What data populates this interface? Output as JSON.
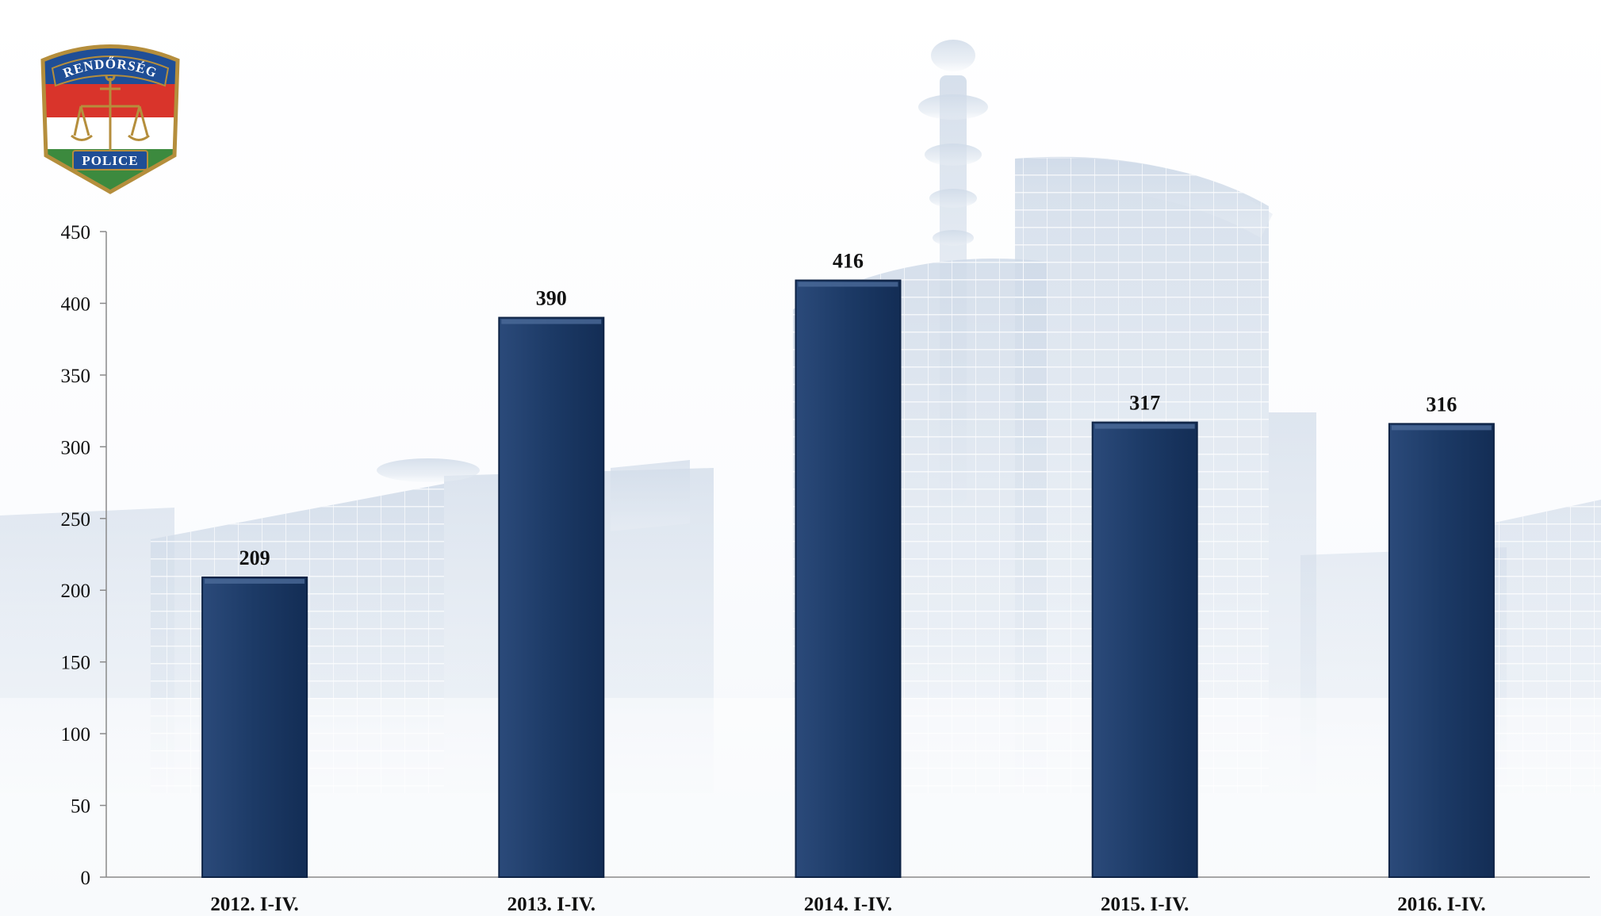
{
  "logo": {
    "top_text": "RENDŐRSÉG",
    "bottom_text": "POLICE",
    "colors": {
      "red": "#d9342b",
      "white": "#ffffff",
      "green": "#3c8a3e",
      "blue": "#1f4e96",
      "gold": "#b58e3c"
    }
  },
  "background": {
    "subject": "building-watermark",
    "tint": "#d6e0ec"
  },
  "chart_data": {
    "type": "bar",
    "title": "",
    "xlabel": "",
    "ylabel": "",
    "categories": [
      "2012. I-IV.",
      "2013. I-IV.",
      "2014. I-IV.",
      "2015. I-IV.",
      "2016. I-IV."
    ],
    "values": [
      209,
      390,
      416,
      317,
      316
    ],
    "data_labels": [
      "209",
      "390",
      "416",
      "317",
      "316"
    ],
    "ylim": [
      0,
      450
    ],
    "y_ticks": [
      0,
      50,
      100,
      150,
      200,
      250,
      300,
      350,
      400,
      450
    ],
    "y_tick_labels": [
      "0",
      "50",
      "100",
      "150",
      "200",
      "250",
      "300",
      "350",
      "400",
      "450"
    ],
    "grid": false,
    "legend": "none",
    "bar_color": "#1c3a66",
    "bar_edge_color": "#0e2345"
  }
}
